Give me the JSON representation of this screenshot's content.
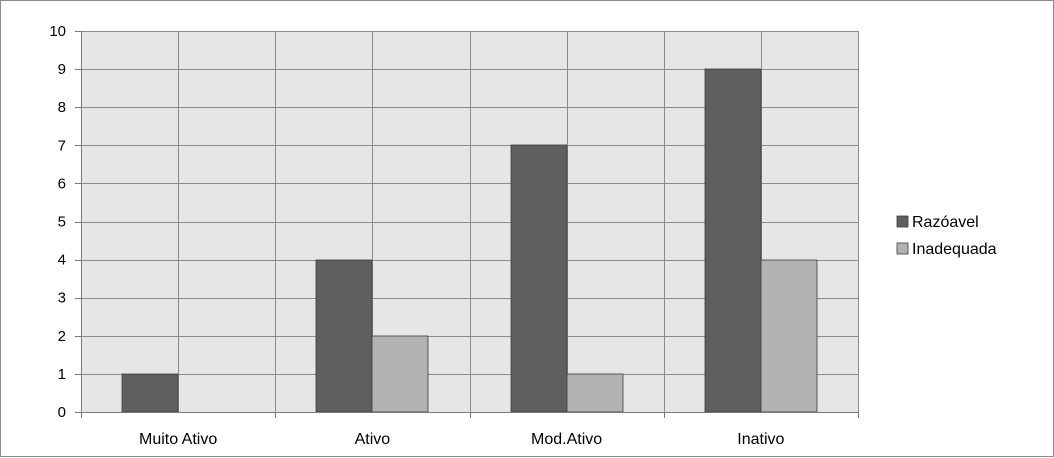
{
  "chart_data": {
    "type": "bar",
    "title": "",
    "xlabel": "",
    "ylabel": "",
    "categories": [
      "Muito Ativo",
      "Ativo",
      "Mod.Ativo",
      "Inativo"
    ],
    "series": [
      {
        "name": "Razóavel",
        "values": [
          1,
          4,
          7,
          9
        ],
        "color": "#5f5f5f"
      },
      {
        "name": "Inadequada",
        "values": [
          0,
          2,
          1,
          4
        ],
        "color": "#b2b2b2"
      }
    ],
    "ylim": [
      0,
      10
    ],
    "yticks": [
      0,
      1,
      2,
      3,
      4,
      5,
      6,
      7,
      8,
      9,
      10
    ],
    "grid": true,
    "legend": "right",
    "plot_background": "#e6e6e6",
    "gridline_color": "#8c8c8c"
  }
}
